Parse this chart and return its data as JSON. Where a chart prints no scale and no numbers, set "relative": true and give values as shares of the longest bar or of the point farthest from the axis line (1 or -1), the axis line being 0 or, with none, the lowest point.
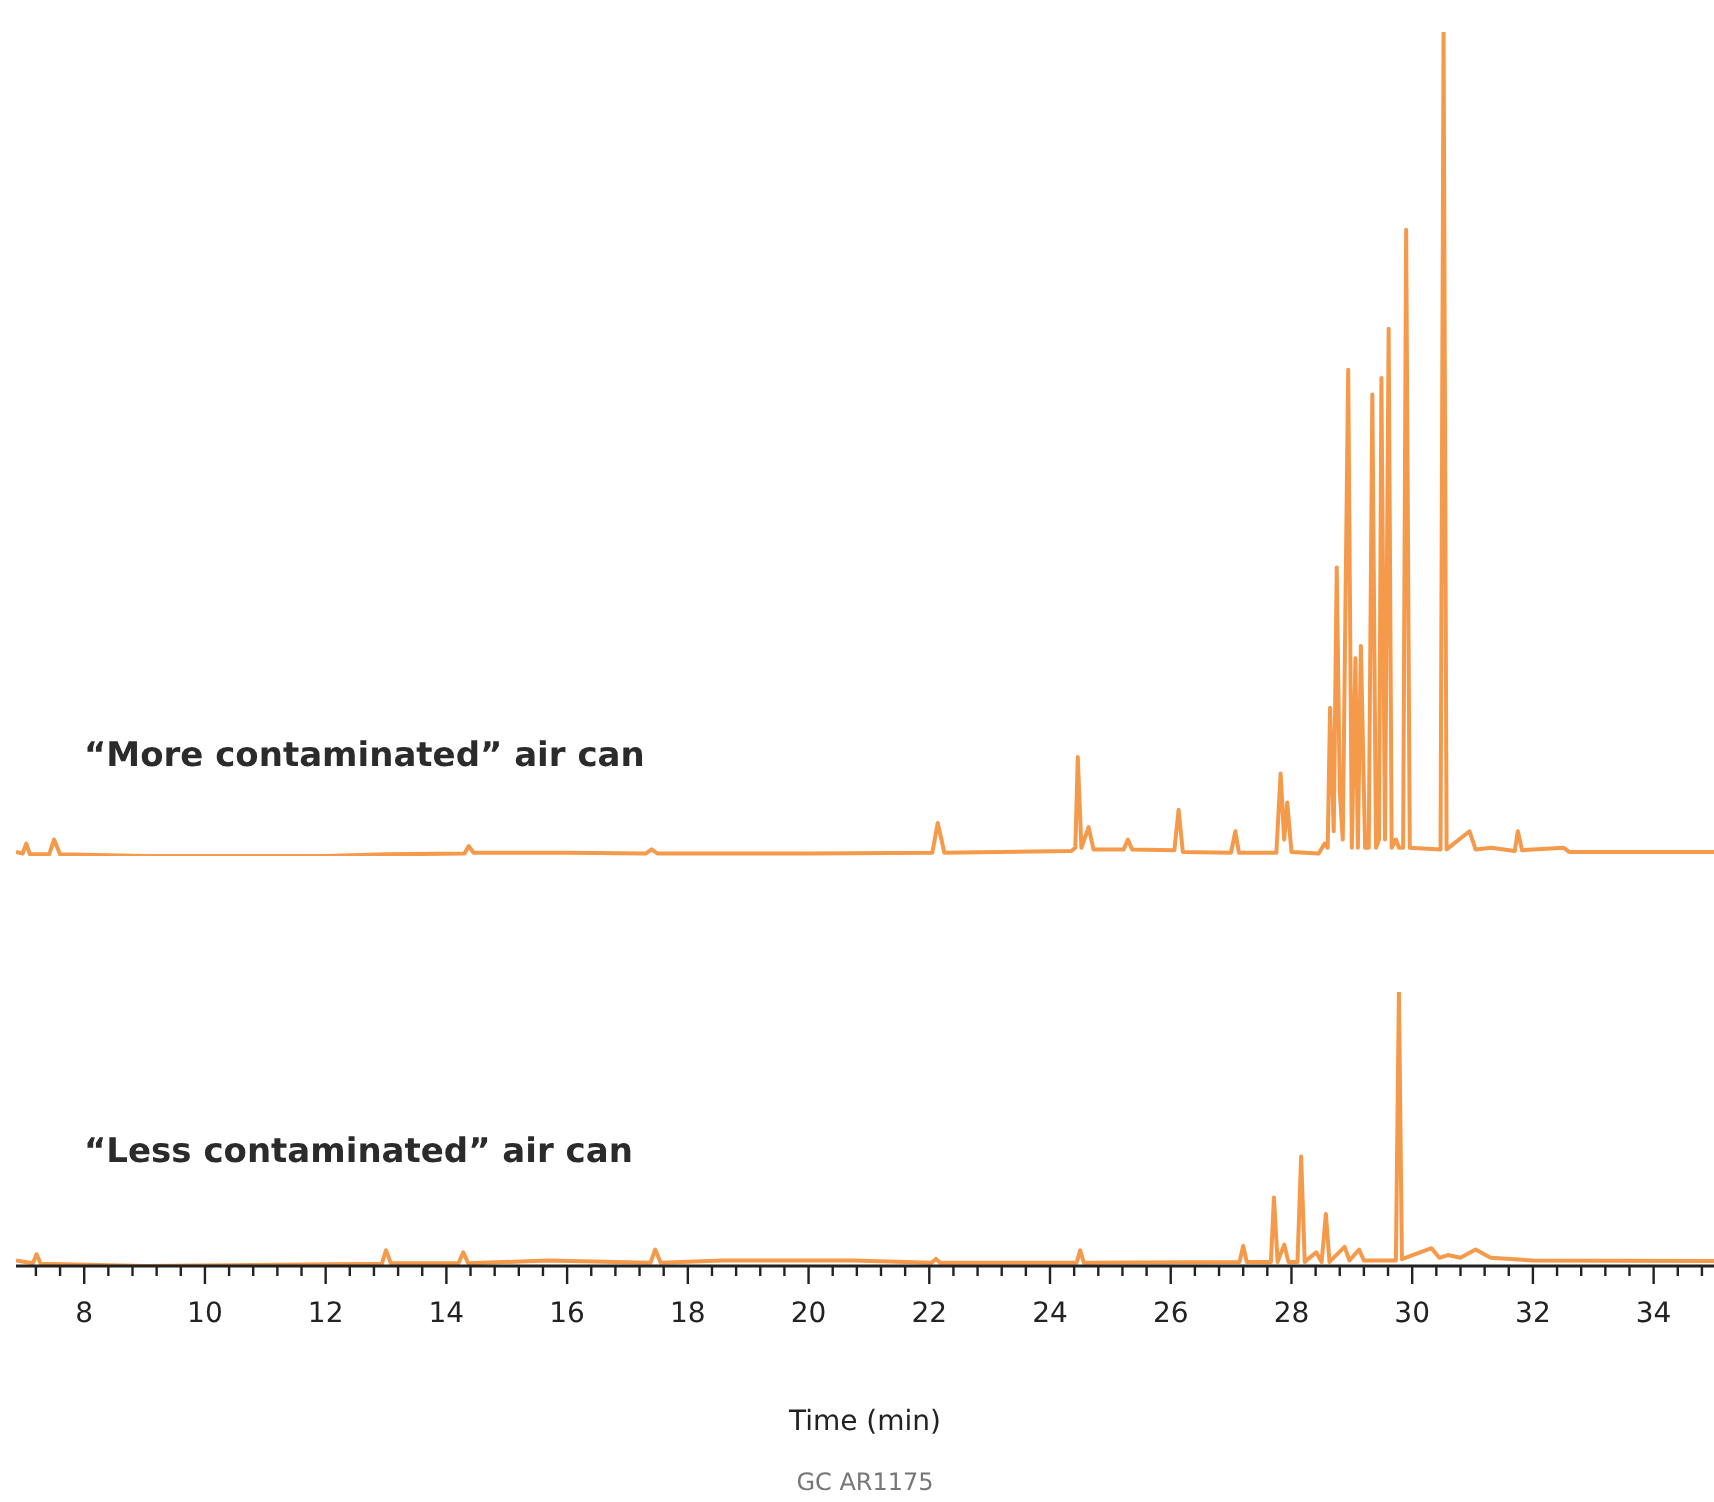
{
  "chart_data": [
    {
      "type": "line",
      "relative": true,
      "tick_labels": false,
      "xlim": [
        6.87,
        35.0
      ],
      "annotations": [
        "“More contaminated” air can"
      ],
      "x": [
        6.87,
        6.98,
        7.04,
        7.1,
        7.42,
        7.5,
        7.6,
        9,
        12,
        13,
        14.3,
        14.37,
        14.45,
        16,
        17.3,
        17.4,
        17.5,
        20,
        22.05,
        22.14,
        22.25,
        24.35,
        24.42,
        24.46,
        24.52,
        24.64,
        24.72,
        25.22,
        25.29,
        25.36,
        26.06,
        26.13,
        26.2,
        27.0,
        27.07,
        27.13,
        27.75,
        27.82,
        27.88,
        27.93,
        28.0,
        28.45,
        28.55,
        28.6,
        28.64,
        28.7,
        28.75,
        28.8,
        28.85,
        28.94,
        29.0,
        29.06,
        29.1,
        29.15,
        29.22,
        29.28,
        29.34,
        29.4,
        29.45,
        29.49,
        29.55,
        29.61,
        29.66,
        29.73,
        29.78,
        29.85,
        29.9,
        29.96,
        30.47,
        30.52,
        30.57,
        30.95,
        31.05,
        31.31,
        31.7,
        31.75,
        31.82,
        32.51,
        32.6,
        35.0
      ],
      "series": [
        {
          "color": "#f5994a",
          "values": [
            0.005,
            0.003,
            0.015,
            0.002,
            0.002,
            0.02,
            0.002,
            0,
            0,
            0.002,
            0.003,
            0.012,
            0.004,
            0.004,
            0.003,
            0.008,
            0.003,
            0.003,
            0.004,
            0.04,
            0.004,
            0.006,
            0.01,
            0.12,
            0.01,
            0.035,
            0.008,
            0.008,
            0.02,
            0.008,
            0.007,
            0.056,
            0.005,
            0.004,
            0.03,
            0.004,
            0.004,
            0.1,
            0.02,
            0.065,
            0.005,
            0.003,
            0.015,
            0.01,
            0.18,
            0.03,
            0.35,
            0.08,
            0.02,
            0.59,
            0.01,
            0.24,
            0.01,
            0.255,
            0.01,
            0.01,
            0.56,
            0.01,
            0.02,
            0.58,
            0.02,
            0.64,
            0.01,
            0.02,
            0.01,
            0.01,
            0.76,
            0.01,
            0.008,
            1.0,
            0.008,
            0.03,
            0.008,
            0.01,
            0.006,
            0.03,
            0.007,
            0.01,
            0.005,
            0.005
          ]
        }
      ]
    },
    {
      "type": "line",
      "relative": true,
      "tick_labels": "x",
      "xlim": [
        6.87,
        35.0
      ],
      "xlabel": "Time (min)",
      "annotations": [
        "“Less contaminated” air can",
        "GC AR1175"
      ],
      "xticks": [
        {
          "value": 7.2,
          "label": null
        },
        {
          "value": 7.6,
          "label": null
        },
        8,
        {
          "value": 8.4,
          "label": null
        },
        {
          "value": 8.8,
          "label": null
        },
        {
          "value": 9.2,
          "label": null
        },
        {
          "value": 9.6,
          "label": null
        },
        10,
        {
          "value": 10.4,
          "label": null
        },
        {
          "value": 10.8,
          "label": null
        },
        {
          "value": 11.2,
          "label": null
        },
        {
          "value": 11.6,
          "label": null
        },
        12,
        {
          "value": 12.4,
          "label": null
        },
        {
          "value": 12.8,
          "label": null
        },
        {
          "value": 13.2,
          "label": null
        },
        {
          "value": 13.6,
          "label": null
        },
        14,
        {
          "value": 14.4,
          "label": null
        },
        {
          "value": 14.8,
          "label": null
        },
        {
          "value": 15.2,
          "label": null
        },
        {
          "value": 15.6,
          "label": null
        },
        16,
        {
          "value": 16.4,
          "label": null
        },
        {
          "value": 16.8,
          "label": null
        },
        {
          "value": 17.2,
          "label": null
        },
        {
          "value": 17.6,
          "label": null
        },
        18,
        {
          "value": 18.4,
          "label": null
        },
        {
          "value": 18.8,
          "label": null
        },
        {
          "value": 19.2,
          "label": null
        },
        {
          "value": 19.6,
          "label": null
        },
        20,
        {
          "value": 20.4,
          "label": null
        },
        {
          "value": 20.8,
          "label": null
        },
        {
          "value": 21.2,
          "label": null
        },
        {
          "value": 21.6,
          "label": null
        },
        22,
        {
          "value": 22.4,
          "label": null
        },
        {
          "value": 22.8,
          "label": null
        },
        {
          "value": 23.2,
          "label": null
        },
        {
          "value": 23.6,
          "label": null
        },
        24,
        {
          "value": 24.4,
          "label": null
        },
        {
          "value": 24.8,
          "label": null
        },
        {
          "value": 25.2,
          "label": null
        },
        {
          "value": 25.6,
          "label": null
        },
        26,
        {
          "value": 26.4,
          "label": null
        },
        {
          "value": 26.8,
          "label": null
        },
        {
          "value": 27.2,
          "label": null
        },
        {
          "value": 27.6,
          "label": null
        },
        28,
        {
          "value": 28.4,
          "label": null
        },
        {
          "value": 28.8,
          "label": null
        },
        {
          "value": 29.2,
          "label": null
        },
        {
          "value": 29.6,
          "label": null
        },
        30,
        {
          "value": 30.4,
          "label": null
        },
        {
          "value": 30.8,
          "label": null
        },
        {
          "value": 31.2,
          "label": null
        },
        {
          "value": 31.6,
          "label": null
        },
        32,
        {
          "value": 32.4,
          "label": null
        },
        {
          "value": 32.8,
          "label": null
        },
        {
          "value": 33.2,
          "label": null
        },
        {
          "value": 33.6,
          "label": null
        },
        34,
        {
          "value": 34.4,
          "label": null
        },
        {
          "value": 34.8,
          "label": null
        }
      ],
      "x": [
        6.87,
        7.15,
        7.21,
        7.28,
        9,
        12.93,
        13.0,
        13.08,
        14.2,
        14.28,
        14.36,
        15.67,
        17.38,
        17.46,
        17.55,
        18.57,
        20.75,
        22.04,
        22.11,
        22.18,
        24.44,
        24.5,
        24.56,
        27.14,
        27.2,
        27.26,
        27.66,
        27.71,
        27.77,
        27.88,
        27.95,
        28.1,
        28.16,
        28.22,
        28.41,
        28.5,
        28.57,
        28.63,
        28.88,
        28.96,
        29.12,
        29.2,
        29.73,
        29.78,
        29.83,
        30.32,
        30.45,
        30.59,
        30.8,
        31.05,
        31.3,
        32.0,
        35.0
      ],
      "series": [
        {
          "color": "#f5994a",
          "values": [
            0.02,
            0.01,
            0.043,
            0.008,
            0,
            0.008,
            0.057,
            0.01,
            0.01,
            0.05,
            0.01,
            0.02,
            0.012,
            0.06,
            0.012,
            0.02,
            0.02,
            0.012,
            0.026,
            0.012,
            0.012,
            0.057,
            0.012,
            0.015,
            0.073,
            0.015,
            0.015,
            0.25,
            0.015,
            0.078,
            0.015,
            0.015,
            0.4,
            0.015,
            0.05,
            0.015,
            0.19,
            0.015,
            0.07,
            0.02,
            0.06,
            0.02,
            0.02,
            1.0,
            0.025,
            0.065,
            0.03,
            0.04,
            0.03,
            0.06,
            0.03,
            0.02,
            0.018
          ]
        }
      ]
    }
  ]
}
